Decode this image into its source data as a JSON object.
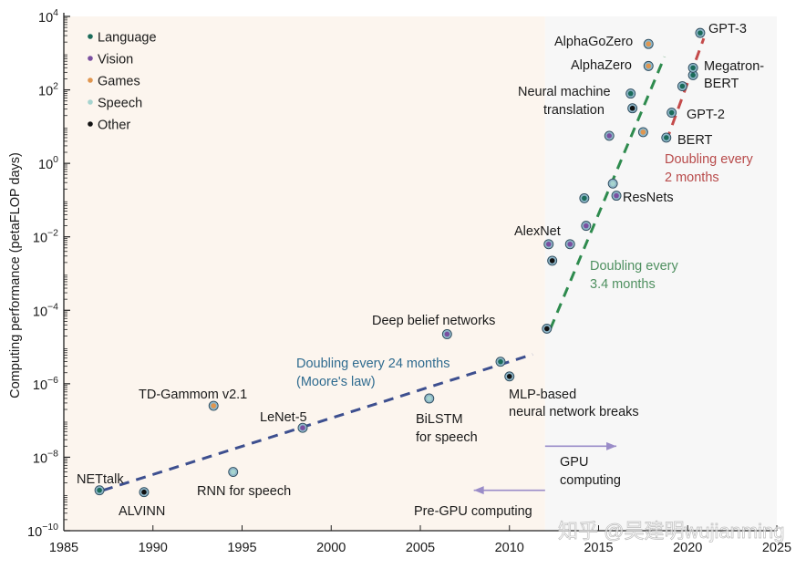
{
  "chart_data": {
    "type": "scatter",
    "title": "",
    "xlabel": "",
    "ylabel": "Computing performance (petaFLOP days)",
    "xlim": [
      1985,
      2025
    ],
    "ylim_log10": [
      -10,
      4
    ],
    "y_scale": "log",
    "grid": false,
    "x_ticks": [
      1985,
      1990,
      1995,
      2000,
      2005,
      2010,
      2015,
      2020,
      2025
    ],
    "y_ticks": [
      {
        "exp": 4,
        "label": "10",
        "sup": "4"
      },
      {
        "exp": 2,
        "label": "10",
        "sup": "2"
      },
      {
        "exp": 0,
        "label": "10",
        "sup": "0"
      },
      {
        "exp": -2,
        "label": "10",
        "sup": "−2"
      },
      {
        "exp": -4,
        "label": "10",
        "sup": "−4"
      },
      {
        "exp": -6,
        "label": "10",
        "sup": "−6"
      },
      {
        "exp": -8,
        "label": "10",
        "sup": "−8"
      },
      {
        "exp": -10,
        "label": "10",
        "sup": "−10"
      }
    ],
    "legend": {
      "placement": "top-left",
      "entries": [
        {
          "name": "Language",
          "color": "#1b6b5a"
        },
        {
          "name": "Vision",
          "color": "#7a4fa0"
        },
        {
          "name": "Games",
          "color": "#e0964f"
        },
        {
          "name": "Speech",
          "color": "#a6d4cf"
        },
        {
          "name": "Other",
          "color": "#111111"
        }
      ]
    },
    "category_colors": {
      "Language": "#1b6b5a",
      "Vision": "#7a4fa0",
      "Games": "#e0964f",
      "Speech": "#a6d4cf",
      "Other": "#111111"
    },
    "points": [
      {
        "label": "NETtalk",
        "x": 1987.0,
        "log10y": -8.9,
        "category": "Language"
      },
      {
        "label": "ALVINN",
        "x": 1989.5,
        "log10y": -8.95,
        "category": "Other"
      },
      {
        "label": "TD-Gammom v2.1",
        "x": 1993.4,
        "log10y": -6.6,
        "category": "Games"
      },
      {
        "label": "RNN for speech",
        "x": 1994.5,
        "log10y": -8.4,
        "category": "Speech"
      },
      {
        "label": "LeNet-5",
        "x": 1998.4,
        "log10y": -7.2,
        "category": "Vision"
      },
      {
        "label": "BiLSTM for speech",
        "x": 2005.5,
        "log10y": -6.4,
        "category": "Speech"
      },
      {
        "label": "Deep belief networks",
        "x": 2006.5,
        "log10y": -4.65,
        "category": "Vision"
      },
      {
        "label": "",
        "x": 2009.5,
        "log10y": -5.4,
        "category": "Language"
      },
      {
        "label": "MLP-based neural network breaks",
        "x": 2010.0,
        "log10y": -5.8,
        "category": "Other"
      },
      {
        "label": "",
        "x": 2012.1,
        "log10y": -4.5,
        "category": "Other"
      },
      {
        "label": "AlexNet",
        "x": 2012.2,
        "log10y": -2.2,
        "category": "Vision"
      },
      {
        "label": "",
        "x": 2012.4,
        "log10y": -2.65,
        "category": "Other"
      },
      {
        "label": "",
        "x": 2013.4,
        "log10y": -2.2,
        "category": "Vision"
      },
      {
        "label": "",
        "x": 2014.3,
        "log10y": -1.7,
        "category": "Vision"
      },
      {
        "label": "",
        "x": 2014.2,
        "log10y": -0.95,
        "category": "Language"
      },
      {
        "label": "",
        "x": 2015.8,
        "log10y": -0.55,
        "category": "Speech"
      },
      {
        "label": "ResNets",
        "x": 2016.0,
        "log10y": -0.88,
        "category": "Vision"
      },
      {
        "label": "",
        "x": 2015.6,
        "log10y": 0.75,
        "category": "Vision"
      },
      {
        "label": "",
        "x": 2017.5,
        "log10y": 0.85,
        "category": "Games"
      },
      {
        "label": "Neural machine translation",
        "x": 2016.8,
        "log10y": 1.9,
        "category": "Language"
      },
      {
        "label": "",
        "x": 2016.9,
        "log10y": 1.5,
        "category": "Other"
      },
      {
        "label": "AlphaZero",
        "x": 2017.8,
        "log10y": 2.65,
        "category": "Games"
      },
      {
        "label": "AlphaGoZero",
        "x": 2017.8,
        "log10y": 3.25,
        "category": "Games"
      },
      {
        "label": "BERT",
        "x": 2018.8,
        "log10y": 0.7,
        "category": "Language"
      },
      {
        "label": "GPT-2",
        "x": 2019.1,
        "log10y": 1.38,
        "category": "Language"
      },
      {
        "label": "",
        "x": 2019.7,
        "log10y": 2.1,
        "category": "Language"
      },
      {
        "label": "Megatron-BERT",
        "x": 2020.3,
        "log10y": 2.4,
        "category": "Language"
      },
      {
        "label": "",
        "x": 2020.3,
        "log10y": 2.6,
        "category": "Language"
      },
      {
        "label": "GPT-3",
        "x": 2020.7,
        "log10y": 3.55,
        "category": "Language"
      }
    ],
    "trend_lines": [
      {
        "name": "Doubling every 24 months (Moore's law)",
        "color": "#3d4f8f",
        "from": {
          "x": 1987.2,
          "log10y": -8.9
        },
        "to": {
          "x": 2011.3,
          "log10y": -5.2
        }
      },
      {
        "name": "Doubling every 3.4 months",
        "color": "#2e8b4e",
        "from": {
          "x": 2012.3,
          "log10y": -4.5
        },
        "to": {
          "x": 2018.7,
          "log10y": 2.9
        }
      },
      {
        "name": "Doubling every 2 months",
        "color": "#c44a4a",
        "from": {
          "x": 2018.8,
          "log10y": 0.6
        },
        "to": {
          "x": 2020.9,
          "log10y": 3.4
        }
      }
    ],
    "annotations": [
      {
        "lines": [
          "Doubling every 24 months",
          "(Moore's law)"
        ],
        "color": "#2f6b8f",
        "x": 2000.0,
        "log10y": -5.35
      },
      {
        "lines": [
          "Doubling every",
          "3.4 months"
        ],
        "color": "#4f9060",
        "x": 2013.9,
        "log10y": -3.35
      },
      {
        "lines": [
          "Doubling every",
          "2 months"
        ],
        "color": "#b84a4a",
        "x": 2018.9,
        "log10y": -0.05
      },
      {
        "lines": [
          "GPU",
          "computing"
        ],
        "color": "#1a1a1a",
        "x": 2012.6,
        "log10y": -8.0
      },
      {
        "lines": [
          "Pre-GPU computing"
        ],
        "color": "#1a1a1a",
        "x": 2004.3,
        "log10y": -9.35
      }
    ],
    "regions": [
      {
        "name": "Pre-GPU",
        "from": 1985,
        "to": 2012,
        "color": "#fcf5ee"
      },
      {
        "name": "GPU",
        "from": 2012,
        "to": 2025,
        "color": "#f7f7f7"
      }
    ],
    "arrows": [
      {
        "name": "gpu-arrow",
        "direction": "right",
        "from_x": 2012.0,
        "to_x": 2016.0,
        "log10y": -7.7,
        "color": "#9a8cc8"
      },
      {
        "name": "pre-gpu-arrow",
        "direction": "left",
        "from_x": 2012.0,
        "to_x": 2008.0,
        "log10y": -8.9,
        "color": "#9a8cc8"
      }
    ]
  },
  "watermark": "知乎 @吴建明wujianming"
}
